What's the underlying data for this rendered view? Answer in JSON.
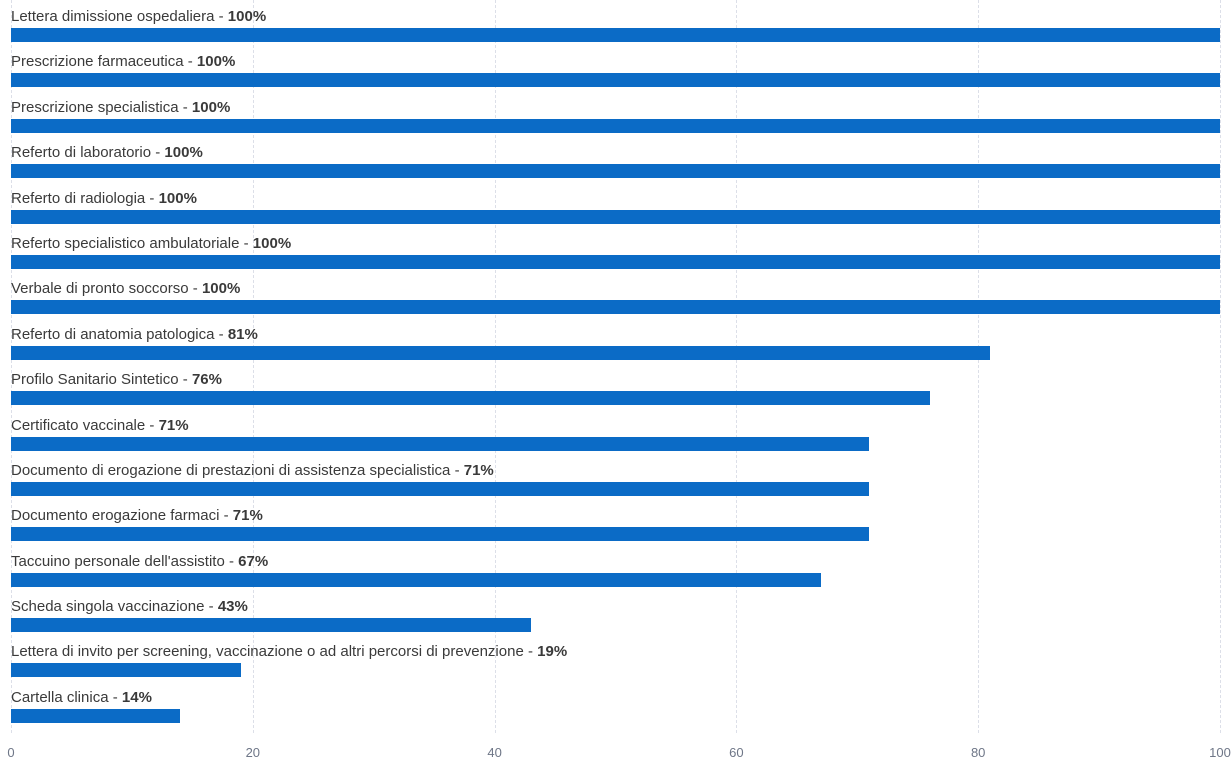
{
  "chart_data": {
    "type": "bar",
    "orientation": "horizontal",
    "title": "",
    "xlabel": "",
    "ylabel": "",
    "xlim": [
      0,
      100
    ],
    "x_ticks": [
      0,
      20,
      40,
      60,
      80,
      100
    ],
    "x_tick_labels": [
      "0",
      "20",
      "40",
      "60",
      "80",
      "100"
    ],
    "grid": "vertical-dashed",
    "label_separator": " - ",
    "value_suffix": "%",
    "categories": [
      "Lettera dimissione ospedaliera",
      "Prescrizione farmaceutica",
      "Prescrizione specialistica",
      "Referto di laboratorio",
      "Referto di radiologia",
      "Referto specialistico ambulatoriale",
      "Verbale di pronto soccorso",
      "Referto di anatomia patologica",
      "Profilo Sanitario Sintetico",
      "Certificato vaccinale",
      "Documento di erogazione di prestazioni di assistenza specialistica",
      "Documento erogazione farmaci",
      "Taccuino personale dell'assistito",
      "Scheda singola vaccinazione",
      "Lettera di invito per screening, vaccinazione o ad altri percorsi di prevenzione",
      "Cartella clinica"
    ],
    "values": [
      100,
      100,
      100,
      100,
      100,
      100,
      100,
      81,
      76,
      71,
      71,
      71,
      67,
      43,
      19,
      14
    ],
    "value_labels": [
      "100%",
      "100%",
      "100%",
      "100%",
      "100%",
      "100%",
      "100%",
      "81%",
      "76%",
      "71%",
      "71%",
      "71%",
      "67%",
      "43%",
      "19%",
      "14%"
    ]
  },
  "colors": {
    "bar": "#0b6bc6",
    "grid": "#dcdfe8",
    "label": "#3a3a3a",
    "tick": "#6e7687"
  }
}
